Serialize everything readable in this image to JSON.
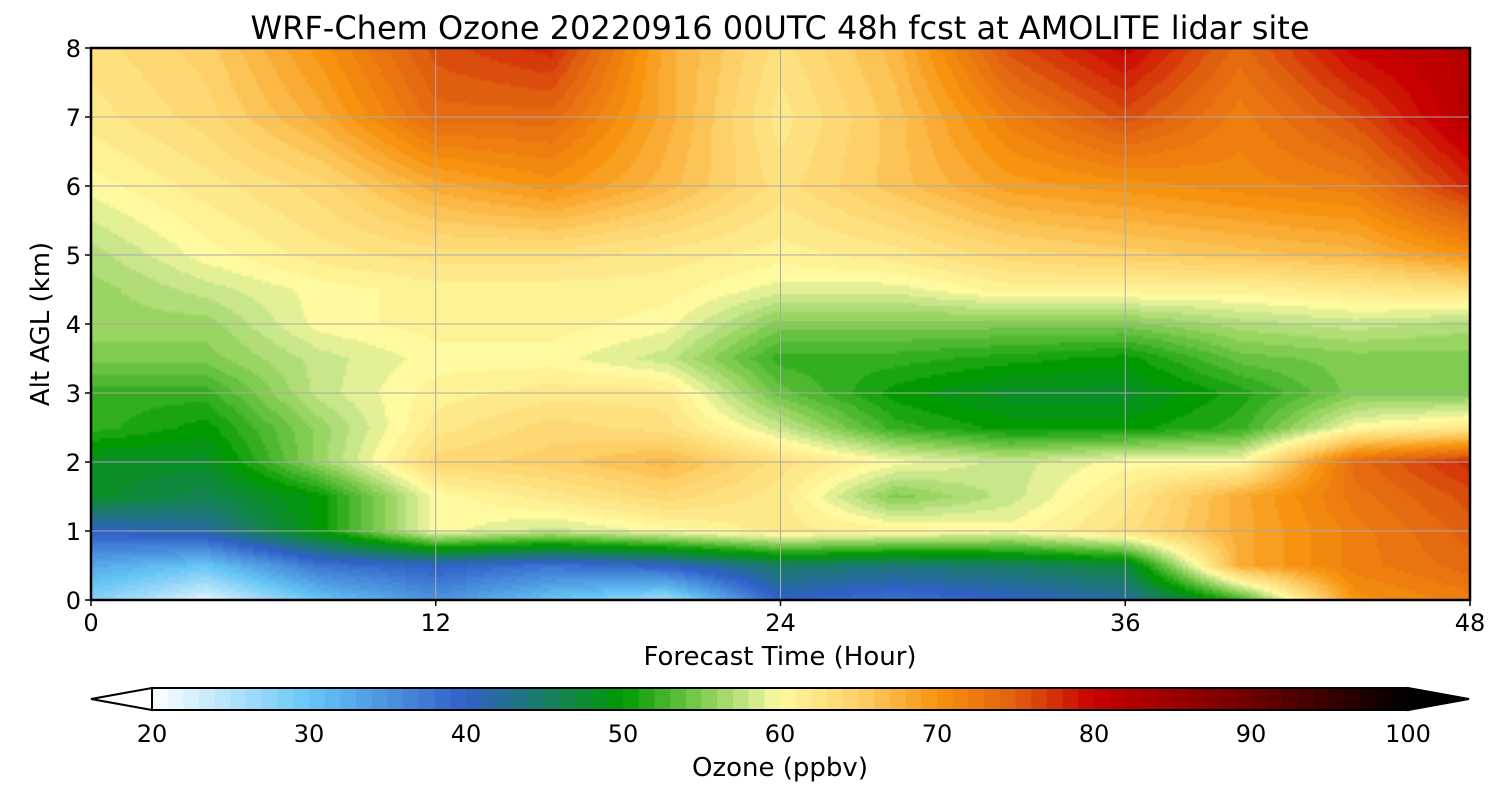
{
  "chart_data": {
    "type": "heatmap",
    "title": "WRF-Chem Ozone  20220916 00UTC 48h fcst at AMOLITE lidar site",
    "xlabel": "Forecast Time (Hour)",
    "ylabel": "Alt AGL (km)",
    "xlim": [
      0,
      48
    ],
    "ylim": [
      0,
      8
    ],
    "xticks": [
      0,
      12,
      24,
      36,
      48
    ],
    "yticks": [
      0,
      1,
      2,
      3,
      4,
      5,
      6,
      7,
      8
    ],
    "grid": true,
    "x": [
      0,
      4,
      8,
      12,
      16,
      20,
      24,
      28,
      32,
      36,
      40,
      44,
      48
    ],
    "y": [
      0,
      0.5,
      1,
      1.5,
      2,
      2.5,
      3,
      3.5,
      4,
      4.5,
      5,
      6,
      7,
      8
    ],
    "z": [
      [
        28,
        22,
        30,
        35,
        30,
        26,
        40,
        38,
        40,
        42,
        52,
        70,
        72
      ],
      [
        33,
        30,
        38,
        40,
        38,
        40,
        45,
        44,
        45,
        47,
        68,
        72,
        74
      ],
      [
        40,
        42,
        50,
        60,
        58,
        60,
        62,
        61,
        60,
        63,
        68,
        72,
        75
      ],
      [
        48,
        46,
        50,
        60,
        62,
        64,
        62,
        55,
        58,
        62,
        68,
        73,
        76
      ],
      [
        48,
        48,
        56,
        64,
        65,
        67,
        63,
        60,
        58,
        60,
        60,
        74,
        78
      ],
      [
        52,
        50,
        56,
        62,
        64,
        63,
        58,
        52,
        50,
        50,
        52,
        60,
        62
      ],
      [
        52,
        52,
        58,
        61,
        62,
        62,
        54,
        50,
        48,
        48,
        51,
        55,
        55
      ],
      [
        55,
        55,
        58,
        60,
        60,
        58,
        52,
        52,
        51,
        50,
        54,
        55,
        55
      ],
      [
        56,
        56,
        60,
        61,
        61,
        60,
        55,
        55,
        55,
        55,
        57,
        58,
        57
      ],
      [
        56,
        58,
        60,
        61,
        61,
        61,
        59,
        59,
        61,
        61,
        61,
        62,
        63
      ],
      [
        57,
        60,
        62,
        63,
        63,
        62,
        61,
        62,
        64,
        65,
        66,
        67,
        70
      ],
      [
        60,
        62,
        64,
        68,
        70,
        67,
        63,
        66,
        69,
        70,
        71,
        72,
        78
      ],
      [
        62,
        64,
        68,
        74,
        74,
        68,
        62,
        66,
        72,
        76,
        72,
        76,
        82
      ],
      [
        63,
        65,
        70,
        76,
        78,
        68,
        63,
        67,
        76,
        80,
        74,
        80,
        82
      ]
    ],
    "colorbar": {
      "label": "Ozone  (ppbv)",
      "min": 20,
      "max": 100,
      "ticks": [
        20,
        30,
        40,
        50,
        60,
        70,
        80,
        90,
        100
      ],
      "extend": "both"
    },
    "colormap": [
      [
        20,
        "#ffffff"
      ],
      [
        30,
        "#66c6f5"
      ],
      [
        40,
        "#3060c8"
      ],
      [
        50,
        "#009a00"
      ],
      [
        55,
        "#80cc50"
      ],
      [
        58,
        "#c8e68a"
      ],
      [
        60,
        "#fffaa0"
      ],
      [
        65,
        "#fdd068"
      ],
      [
        70,
        "#f7930f"
      ],
      [
        75,
        "#e06010"
      ],
      [
        80,
        "#c80000"
      ],
      [
        90,
        "#6e0000"
      ],
      [
        100,
        "#000000"
      ]
    ]
  }
}
